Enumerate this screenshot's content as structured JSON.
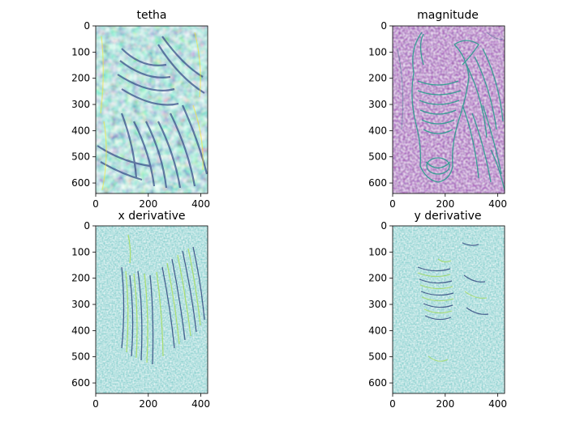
{
  "figure": {
    "background": "#ffffff"
  },
  "chart_data": [
    {
      "type": "heatmap",
      "title": "tetha",
      "rendering": "edge-orientation texture (zebra image, noisy)",
      "colormap": "viridis",
      "xlim": [
        0,
        426
      ],
      "ylim": [
        640,
        0
      ],
      "xticks": [
        0,
        200,
        400
      ],
      "yticks": [
        0,
        100,
        200,
        300,
        400,
        500,
        600
      ]
    },
    {
      "type": "heatmap",
      "title": "magnitude",
      "rendering": "gradient magnitude of zebra image",
      "colormap": "viridis",
      "xlim": [
        0,
        426
      ],
      "ylim": [
        640,
        0
      ],
      "xticks": [
        0,
        200,
        400
      ],
      "yticks": [
        0,
        100,
        200,
        300,
        400,
        500,
        600
      ]
    },
    {
      "type": "heatmap",
      "title": "x derivative",
      "rendering": "horizontal derivative of zebra image",
      "colormap": "viridis",
      "xlim": [
        0,
        426
      ],
      "ylim": [
        640,
        0
      ],
      "xticks": [
        0,
        200,
        400
      ],
      "yticks": [
        0,
        100,
        200,
        300,
        400,
        500,
        600
      ]
    },
    {
      "type": "heatmap",
      "title": "y derivative",
      "rendering": "vertical derivative of zebra image",
      "colormap": "viridis",
      "xlim": [
        0,
        426
      ],
      "ylim": [
        640,
        0
      ],
      "xticks": [
        0,
        200,
        400
      ],
      "yticks": [
        0,
        100,
        200,
        300,
        400,
        500,
        600
      ]
    }
  ]
}
